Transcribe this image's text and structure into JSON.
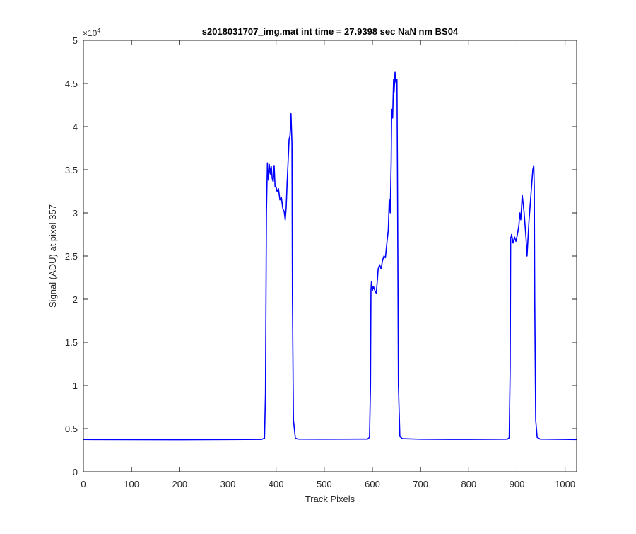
{
  "chart_data": {
    "type": "line",
    "title": "s2018031707_img.mat int time = 27.9398 sec  NaN nm BS04",
    "xlabel": "Track Pixels",
    "ylabel": "Signal (ADU) at pixel 357",
    "xlim": [
      0,
      1024
    ],
    "ylim": [
      0,
      50000
    ],
    "x_ticks": [
      0,
      100,
      200,
      300,
      400,
      500,
      600,
      700,
      800,
      900,
      1000
    ],
    "y_ticks": [
      0,
      5000,
      10000,
      15000,
      20000,
      25000,
      30000,
      35000,
      40000,
      45000,
      50000
    ],
    "y_tick_labels": [
      "0",
      "0.5",
      "1",
      "1.5",
      "2",
      "2.5",
      "3",
      "3.5",
      "4",
      "4.5",
      "5"
    ],
    "y_exponent_label": "×10",
    "y_exponent_power": "4",
    "grid": false,
    "series": [
      {
        "color": "#0000ff",
        "points": [
          [
            0,
            3750
          ],
          [
            100,
            3730
          ],
          [
            200,
            3720
          ],
          [
            300,
            3740
          ],
          [
            370,
            3760
          ],
          [
            376,
            3900
          ],
          [
            378,
            9000
          ],
          [
            380,
            30000
          ],
          [
            382,
            35800
          ],
          [
            384,
            33800
          ],
          [
            386,
            35600
          ],
          [
            388,
            34500
          ],
          [
            390,
            35400
          ],
          [
            392,
            34000
          ],
          [
            394,
            33600
          ],
          [
            396,
            35500
          ],
          [
            398,
            33000
          ],
          [
            400,
            33000
          ],
          [
            402,
            32500
          ],
          [
            405,
            32800
          ],
          [
            408,
            31500
          ],
          [
            411,
            31800
          ],
          [
            414,
            30500
          ],
          [
            417,
            30100
          ],
          [
            419,
            29200
          ],
          [
            421,
            30600
          ],
          [
            423,
            33500
          ],
          [
            425,
            36000
          ],
          [
            427,
            38500
          ],
          [
            429,
            39000
          ],
          [
            431,
            41500
          ],
          [
            433,
            38000
          ],
          [
            434,
            20000
          ],
          [
            436,
            6000
          ],
          [
            440,
            3900
          ],
          [
            445,
            3800
          ],
          [
            500,
            3780
          ],
          [
            590,
            3800
          ],
          [
            594,
            4000
          ],
          [
            596,
            10000
          ],
          [
            597,
            21000
          ],
          [
            598,
            22000
          ],
          [
            600,
            21000
          ],
          [
            602,
            21500
          ],
          [
            605,
            21000
          ],
          [
            608,
            20700
          ],
          [
            610,
            22000
          ],
          [
            612,
            23500
          ],
          [
            615,
            24000
          ],
          [
            618,
            23500
          ],
          [
            621,
            24500
          ],
          [
            624,
            25000
          ],
          [
            627,
            24800
          ],
          [
            630,
            26500
          ],
          [
            633,
            28000
          ],
          [
            635,
            31500
          ],
          [
            637,
            30000
          ],
          [
            639,
            36000
          ],
          [
            640,
            42000
          ],
          [
            642,
            41000
          ],
          [
            644,
            45500
          ],
          [
            645,
            44000
          ],
          [
            647,
            46300
          ],
          [
            649,
            45000
          ],
          [
            651,
            45500
          ],
          [
            652,
            35000
          ],
          [
            654,
            10000
          ],
          [
            657,
            4100
          ],
          [
            662,
            3850
          ],
          [
            700,
            3780
          ],
          [
            800,
            3760
          ],
          [
            880,
            3780
          ],
          [
            884,
            3950
          ],
          [
            886,
            12000
          ],
          [
            887,
            27000
          ],
          [
            889,
            27500
          ],
          [
            892,
            26500
          ],
          [
            895,
            27200
          ],
          [
            898,
            26700
          ],
          [
            901,
            27500
          ],
          [
            904,
            28500
          ],
          [
            906,
            30000
          ],
          [
            908,
            29200
          ],
          [
            910,
            31000
          ],
          [
            911,
            32100
          ],
          [
            913,
            31000
          ],
          [
            915,
            30000
          ],
          [
            917,
            28500
          ],
          [
            919,
            27000
          ],
          [
            921,
            25000
          ],
          [
            923,
            27000
          ],
          [
            925,
            29000
          ],
          [
            927,
            30500
          ],
          [
            929,
            32000
          ],
          [
            931,
            33500
          ],
          [
            933,
            35000
          ],
          [
            935,
            35500
          ],
          [
            936,
            33000
          ],
          [
            937,
            20000
          ],
          [
            939,
            6000
          ],
          [
            942,
            4000
          ],
          [
            948,
            3800
          ],
          [
            1000,
            3760
          ],
          [
            1024,
            3740
          ]
        ]
      }
    ]
  }
}
